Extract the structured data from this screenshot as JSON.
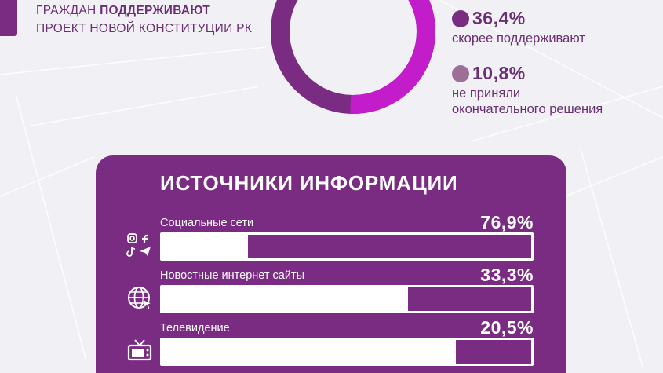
{
  "header": {
    "line1_prefix": "ГРАЖДАН ",
    "line1_bold": "ПОДДЕРЖИВАЮТ",
    "line2": "ПРОЕКТ НОВОЙ КОНСТИТУЦИИ РК"
  },
  "support_legend": [
    {
      "pct": "36,4%",
      "desc": [
        "скорее поддерживают"
      ],
      "color": "#7a2c82"
    },
    {
      "pct": "10,8%",
      "desc": [
        "не приняли",
        "окончательного решения"
      ],
      "color": "#9d6f97"
    }
  ],
  "panel": {
    "title": "ИСТОЧНИКИ ИНФОРМАЦИИ",
    "rows": [
      {
        "label": "Социальные сети",
        "value": "76,9%",
        "icon": "social-media-icon"
      },
      {
        "label": "Новостные интернет сайты",
        "value": "33,3%",
        "icon": "globe-icon"
      },
      {
        "label": "Телевидение",
        "value": "20,5%",
        "icon": "tv-icon"
      }
    ]
  },
  "colors": {
    "accent": "#7a2c82",
    "donut_highlight": "#c21ccb",
    "background": "#f1f0f4",
    "text": "#6a2f74"
  },
  "chart_data": [
    {
      "type": "pie",
      "categories": [
        "скорее поддерживают",
        "не приняли окончательного решения"
      ],
      "values": [
        36.4,
        10.8
      ],
      "note_visible_segments": [
        "purple",
        "magenta"
      ]
    },
    {
      "type": "bar",
      "title": "ИСТОЧНИКИ ИНФОРМАЦИИ",
      "categories": [
        "Социальные сети",
        "Новостные интернет сайты",
        "Телевидение"
      ],
      "values": [
        76.9,
        33.3,
        20.5
      ],
      "ylim": [
        0,
        100
      ]
    }
  ]
}
